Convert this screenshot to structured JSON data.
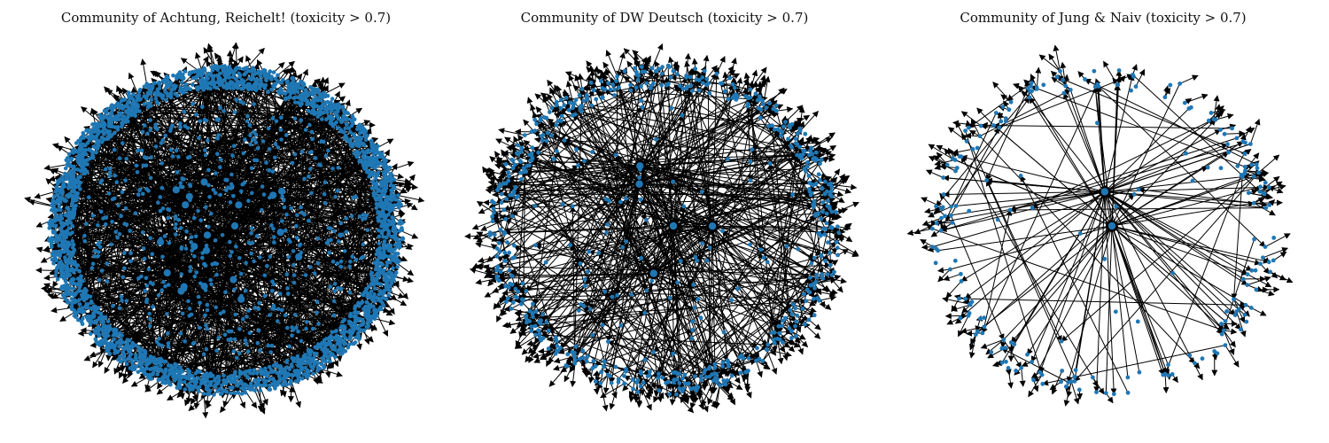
{
  "style": {
    "node_color": "#1f77b4",
    "edge_color": "#000000",
    "background": "#ffffff"
  },
  "panels": [
    {
      "title": "Community of Achtung, Reichelt! (toxicity > 0.7)",
      "graph_type": "directed network",
      "density": "very dense"
    },
    {
      "title": "Community of DW Deutsch (toxicity > 0.7)",
      "graph_type": "directed network",
      "density": "medium"
    },
    {
      "title": "Community of Jung & Naiv (toxicity > 0.7)",
      "graph_type": "directed network",
      "density": "sparse"
    }
  ]
}
